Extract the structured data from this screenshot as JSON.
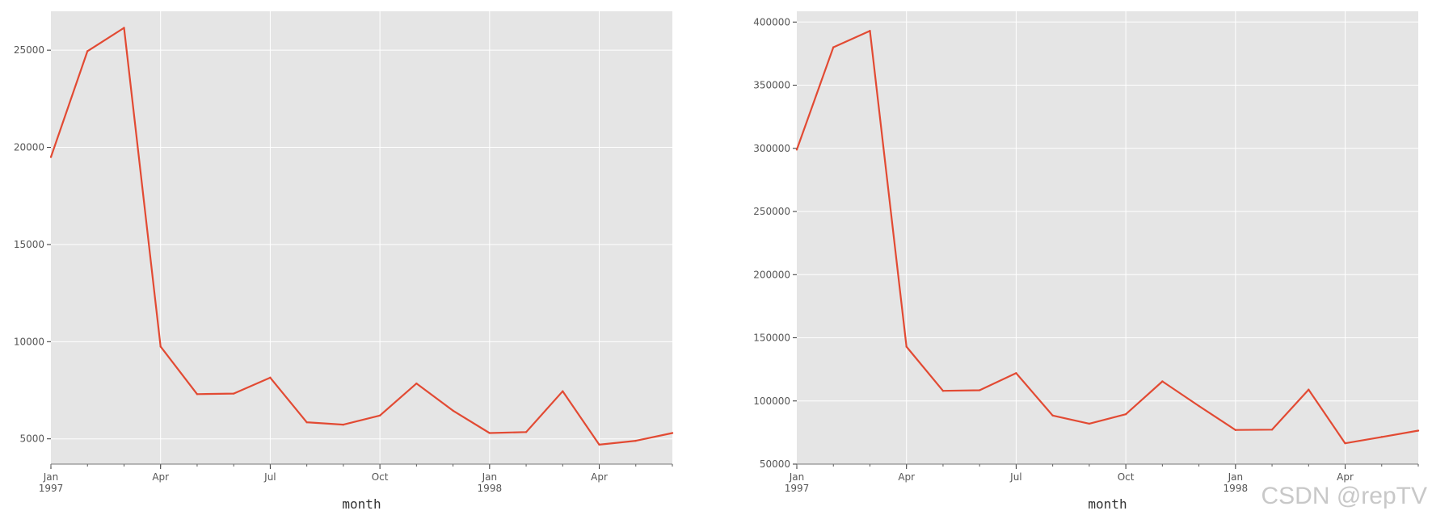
{
  "colors": {
    "plot_background": "#e5e5e5",
    "grid": "#ffffff",
    "line": "#e24a33",
    "tick_text": "#555555",
    "watermark": "#c8c8c8"
  },
  "watermark": "CSDN @repTV",
  "chart_data": [
    {
      "type": "line",
      "title": "",
      "xlabel": "month",
      "ylabel": "",
      "grid": true,
      "x": [
        "1997-01",
        "1997-02",
        "1997-03",
        "1997-04",
        "1997-05",
        "1997-06",
        "1997-07",
        "1997-08",
        "1997-09",
        "1997-10",
        "1997-11",
        "1997-12",
        "1998-01",
        "1998-02",
        "1998-03",
        "1998-04",
        "1998-05",
        "1998-06"
      ],
      "x_ticks": [
        {
          "x": "1997-01",
          "label": "Jan",
          "sublabel": "1997"
        },
        {
          "x": "1997-04",
          "label": "Apr",
          "sublabel": ""
        },
        {
          "x": "1997-07",
          "label": "Jul",
          "sublabel": ""
        },
        {
          "x": "1997-10",
          "label": "Oct",
          "sublabel": ""
        },
        {
          "x": "1998-01",
          "label": "Jan",
          "sublabel": "1998"
        },
        {
          "x": "1998-04",
          "label": "Apr",
          "sublabel": ""
        }
      ],
      "y_ticks": [
        5000,
        10000,
        15000,
        20000,
        25000
      ],
      "ylim": [
        3700,
        27000
      ],
      "series": [
        {
          "values": [
            19500,
            24950,
            26150,
            9750,
            7300,
            7330,
            8150,
            5850,
            5730,
            6200,
            7850,
            6450,
            5300,
            5350,
            7450,
            4700,
            4900,
            5300
          ]
        }
      ]
    },
    {
      "type": "line",
      "title": "",
      "xlabel": "month",
      "ylabel": "",
      "grid": true,
      "x": [
        "1997-01",
        "1997-02",
        "1997-03",
        "1997-04",
        "1997-05",
        "1997-06",
        "1997-07",
        "1997-08",
        "1997-09",
        "1997-10",
        "1997-11",
        "1997-12",
        "1998-01",
        "1998-02",
        "1998-03",
        "1998-04",
        "1998-05",
        "1998-06"
      ],
      "x_ticks": [
        {
          "x": "1997-01",
          "label": "Jan",
          "sublabel": "1997"
        },
        {
          "x": "1997-04",
          "label": "Apr",
          "sublabel": ""
        },
        {
          "x": "1997-07",
          "label": "Jul",
          "sublabel": ""
        },
        {
          "x": "1997-10",
          "label": "Oct",
          "sublabel": ""
        },
        {
          "x": "1998-01",
          "label": "Jan",
          "sublabel": "1998"
        },
        {
          "x": "1998-04",
          "label": "Apr",
          "sublabel": ""
        }
      ],
      "y_ticks": [
        50000,
        100000,
        150000,
        200000,
        250000,
        300000,
        350000,
        400000
      ],
      "ylim": [
        50000,
        408500
      ],
      "series": [
        {
          "values": [
            299000,
            380000,
            393000,
            143000,
            108000,
            108500,
            122000,
            88500,
            82000,
            89500,
            115500,
            96000,
            77000,
            77300,
            109000,
            66500,
            71500,
            76500
          ]
        }
      ]
    }
  ]
}
